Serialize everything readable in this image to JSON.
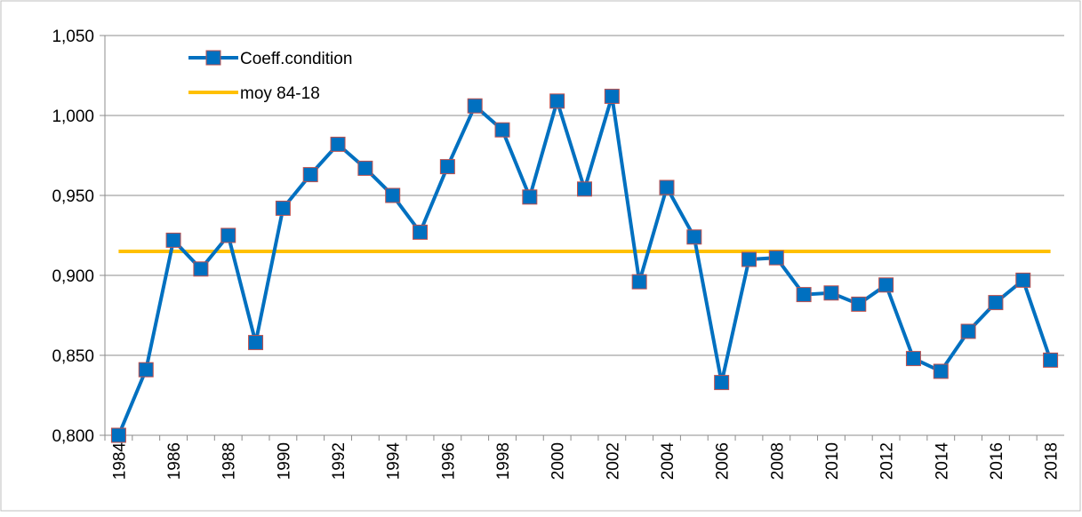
{
  "chart_data": {
    "type": "line",
    "categories": [
      "1984",
      null,
      "1986",
      null,
      "1988",
      null,
      "1990",
      null,
      "1992",
      null,
      "1994",
      null,
      "1996",
      null,
      "1998",
      null,
      "2000",
      null,
      "2002",
      null,
      "2004",
      null,
      "2006",
      null,
      "2008",
      null,
      "2010",
      null,
      "2012",
      null,
      "2014",
      null,
      "2016",
      null,
      "2018"
    ],
    "series": [
      {
        "name": "Coeff.condition",
        "color": "#0070c0",
        "marker": "square",
        "values": [
          0.8,
          0.841,
          0.922,
          0.904,
          0.925,
          0.858,
          0.942,
          0.963,
          0.982,
          0.967,
          0.95,
          0.927,
          0.968,
          1.006,
          0.991,
          0.949,
          1.009,
          0.954,
          1.012,
          0.896,
          0.955,
          0.924,
          0.833,
          0.91,
          0.911,
          0.888,
          0.889,
          0.882,
          0.894,
          0.848,
          0.84,
          0.865,
          0.883,
          0.897,
          0.847
        ]
      },
      {
        "name": "moy 84-18",
        "color": "#ffc000",
        "values": [
          0.915,
          0.915,
          0.915,
          0.915,
          0.915,
          0.915,
          0.915,
          0.915,
          0.915,
          0.915,
          0.915,
          0.915,
          0.915,
          0.915,
          0.915,
          0.915,
          0.915,
          0.915,
          0.915,
          0.915,
          0.915,
          0.915,
          0.915,
          0.915,
          0.915,
          0.915,
          0.915,
          0.915,
          0.915,
          0.915,
          0.915,
          0.915,
          0.915,
          0.915,
          0.915
        ]
      }
    ],
    "ylim": [
      0.8,
      1.05
    ],
    "yticks": [
      {
        "value": 0.8,
        "label": "0,800"
      },
      {
        "value": 0.85,
        "label": "0,850"
      },
      {
        "value": 0.9,
        "label": "0,900"
      },
      {
        "value": 0.95,
        "label": "0,950"
      },
      {
        "value": 1.0,
        "label": "1,000"
      },
      {
        "value": 1.05,
        "label": "1,050"
      }
    ],
    "grid": true,
    "legend": "top-left"
  }
}
